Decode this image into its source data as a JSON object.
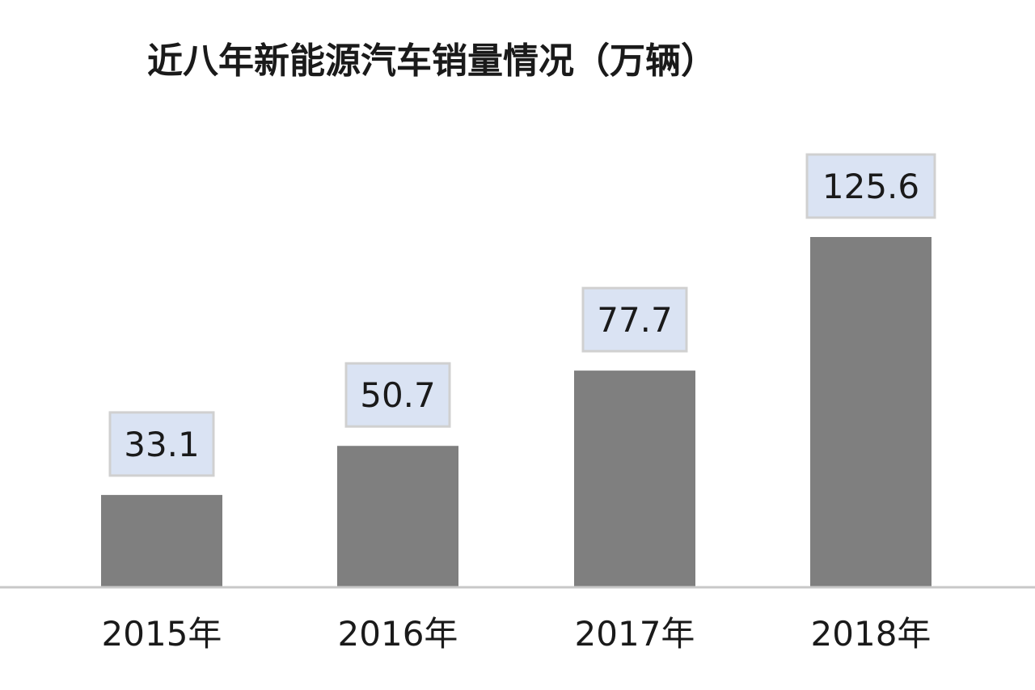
{
  "chart_data": {
    "type": "bar",
    "title": "近八年新能源汽车销量情况（万辆）",
    "xlabel": "",
    "ylabel": "",
    "categories": [
      "2015年",
      "2016年",
      "2017年",
      "2018年"
    ],
    "values": [
      33.1,
      50.7,
      77.7,
      125.6
    ],
    "value_labels": [
      "33.1",
      "50.7",
      "77.7",
      "125.6"
    ],
    "ylim": [
      0,
      125.6
    ],
    "grid": false,
    "legend": "none",
    "colors": {
      "bar": "#7f7f7f",
      "label_bg": "#dae3f3",
      "label_border": "#d0d0d0",
      "axis": "#c8c8c8",
      "text": "#1a1a1a"
    }
  }
}
